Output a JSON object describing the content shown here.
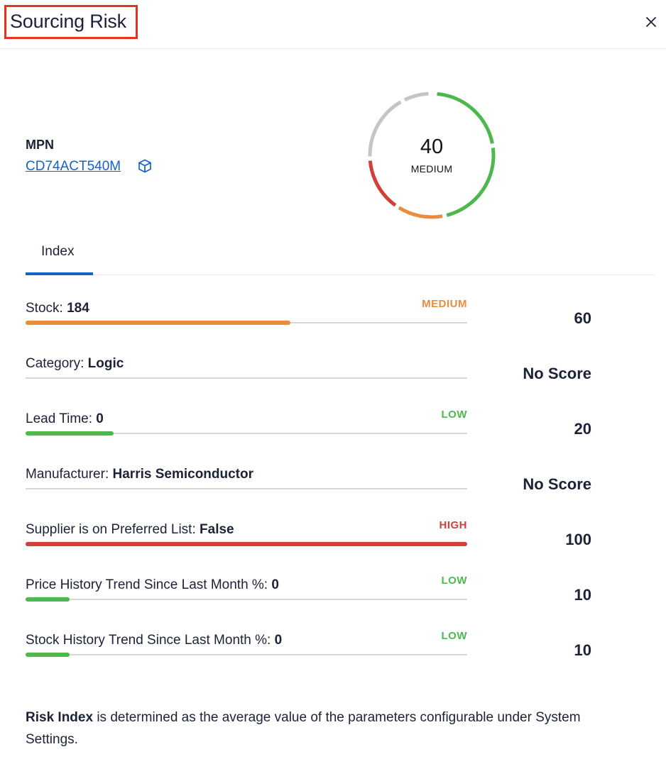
{
  "header": {
    "title": "Sourcing Risk"
  },
  "mpn": {
    "label": "MPN",
    "value": "CD74ACT540M"
  },
  "gauge": {
    "value": "40",
    "level": "MEDIUM",
    "colors": {
      "green": "#4cb84e",
      "orange": "#e88c3e",
      "red": "#d23f37",
      "gray": "#c5c5c5"
    }
  },
  "tabs": [
    {
      "label": "Index"
    }
  ],
  "rows": [
    {
      "label": "Stock:",
      "value": "184",
      "level": "MEDIUM",
      "level_color": "#e88c3e",
      "fill_fraction": 0.6,
      "score": "60"
    },
    {
      "label": "Category:",
      "value": "Logic",
      "level": "",
      "level_color": "",
      "fill_fraction": 0,
      "score": "No Score"
    },
    {
      "label": "Lead Time:",
      "value": "0",
      "level": "LOW",
      "level_color": "#4cb84e",
      "fill_fraction": 0.2,
      "score": "20"
    },
    {
      "label": "Manufacturer:",
      "value": "Harris Semiconductor",
      "level": "",
      "level_color": "",
      "fill_fraction": 0,
      "score": "No Score"
    },
    {
      "label": "Supplier is on Preferred List:",
      "value": "False",
      "level": "HIGH",
      "level_color": "#d23f37",
      "fill_fraction": 1.0,
      "score": "100"
    },
    {
      "label": "Price History Trend Since Last Month %:",
      "value": "0",
      "level": "LOW",
      "level_color": "#4cb84e",
      "fill_fraction": 0.1,
      "score": "10"
    },
    {
      "label": "Stock History Trend Since Last Month %:",
      "value": "0",
      "level": "LOW",
      "level_color": "#4cb84e",
      "fill_fraction": 0.1,
      "score": "10"
    }
  ],
  "footer": {
    "bold": "Risk Index",
    "text": " is determined as the average value of the parameters configurable under System Settings."
  },
  "icons": {
    "close": "close-icon",
    "cube": "cube-icon"
  }
}
